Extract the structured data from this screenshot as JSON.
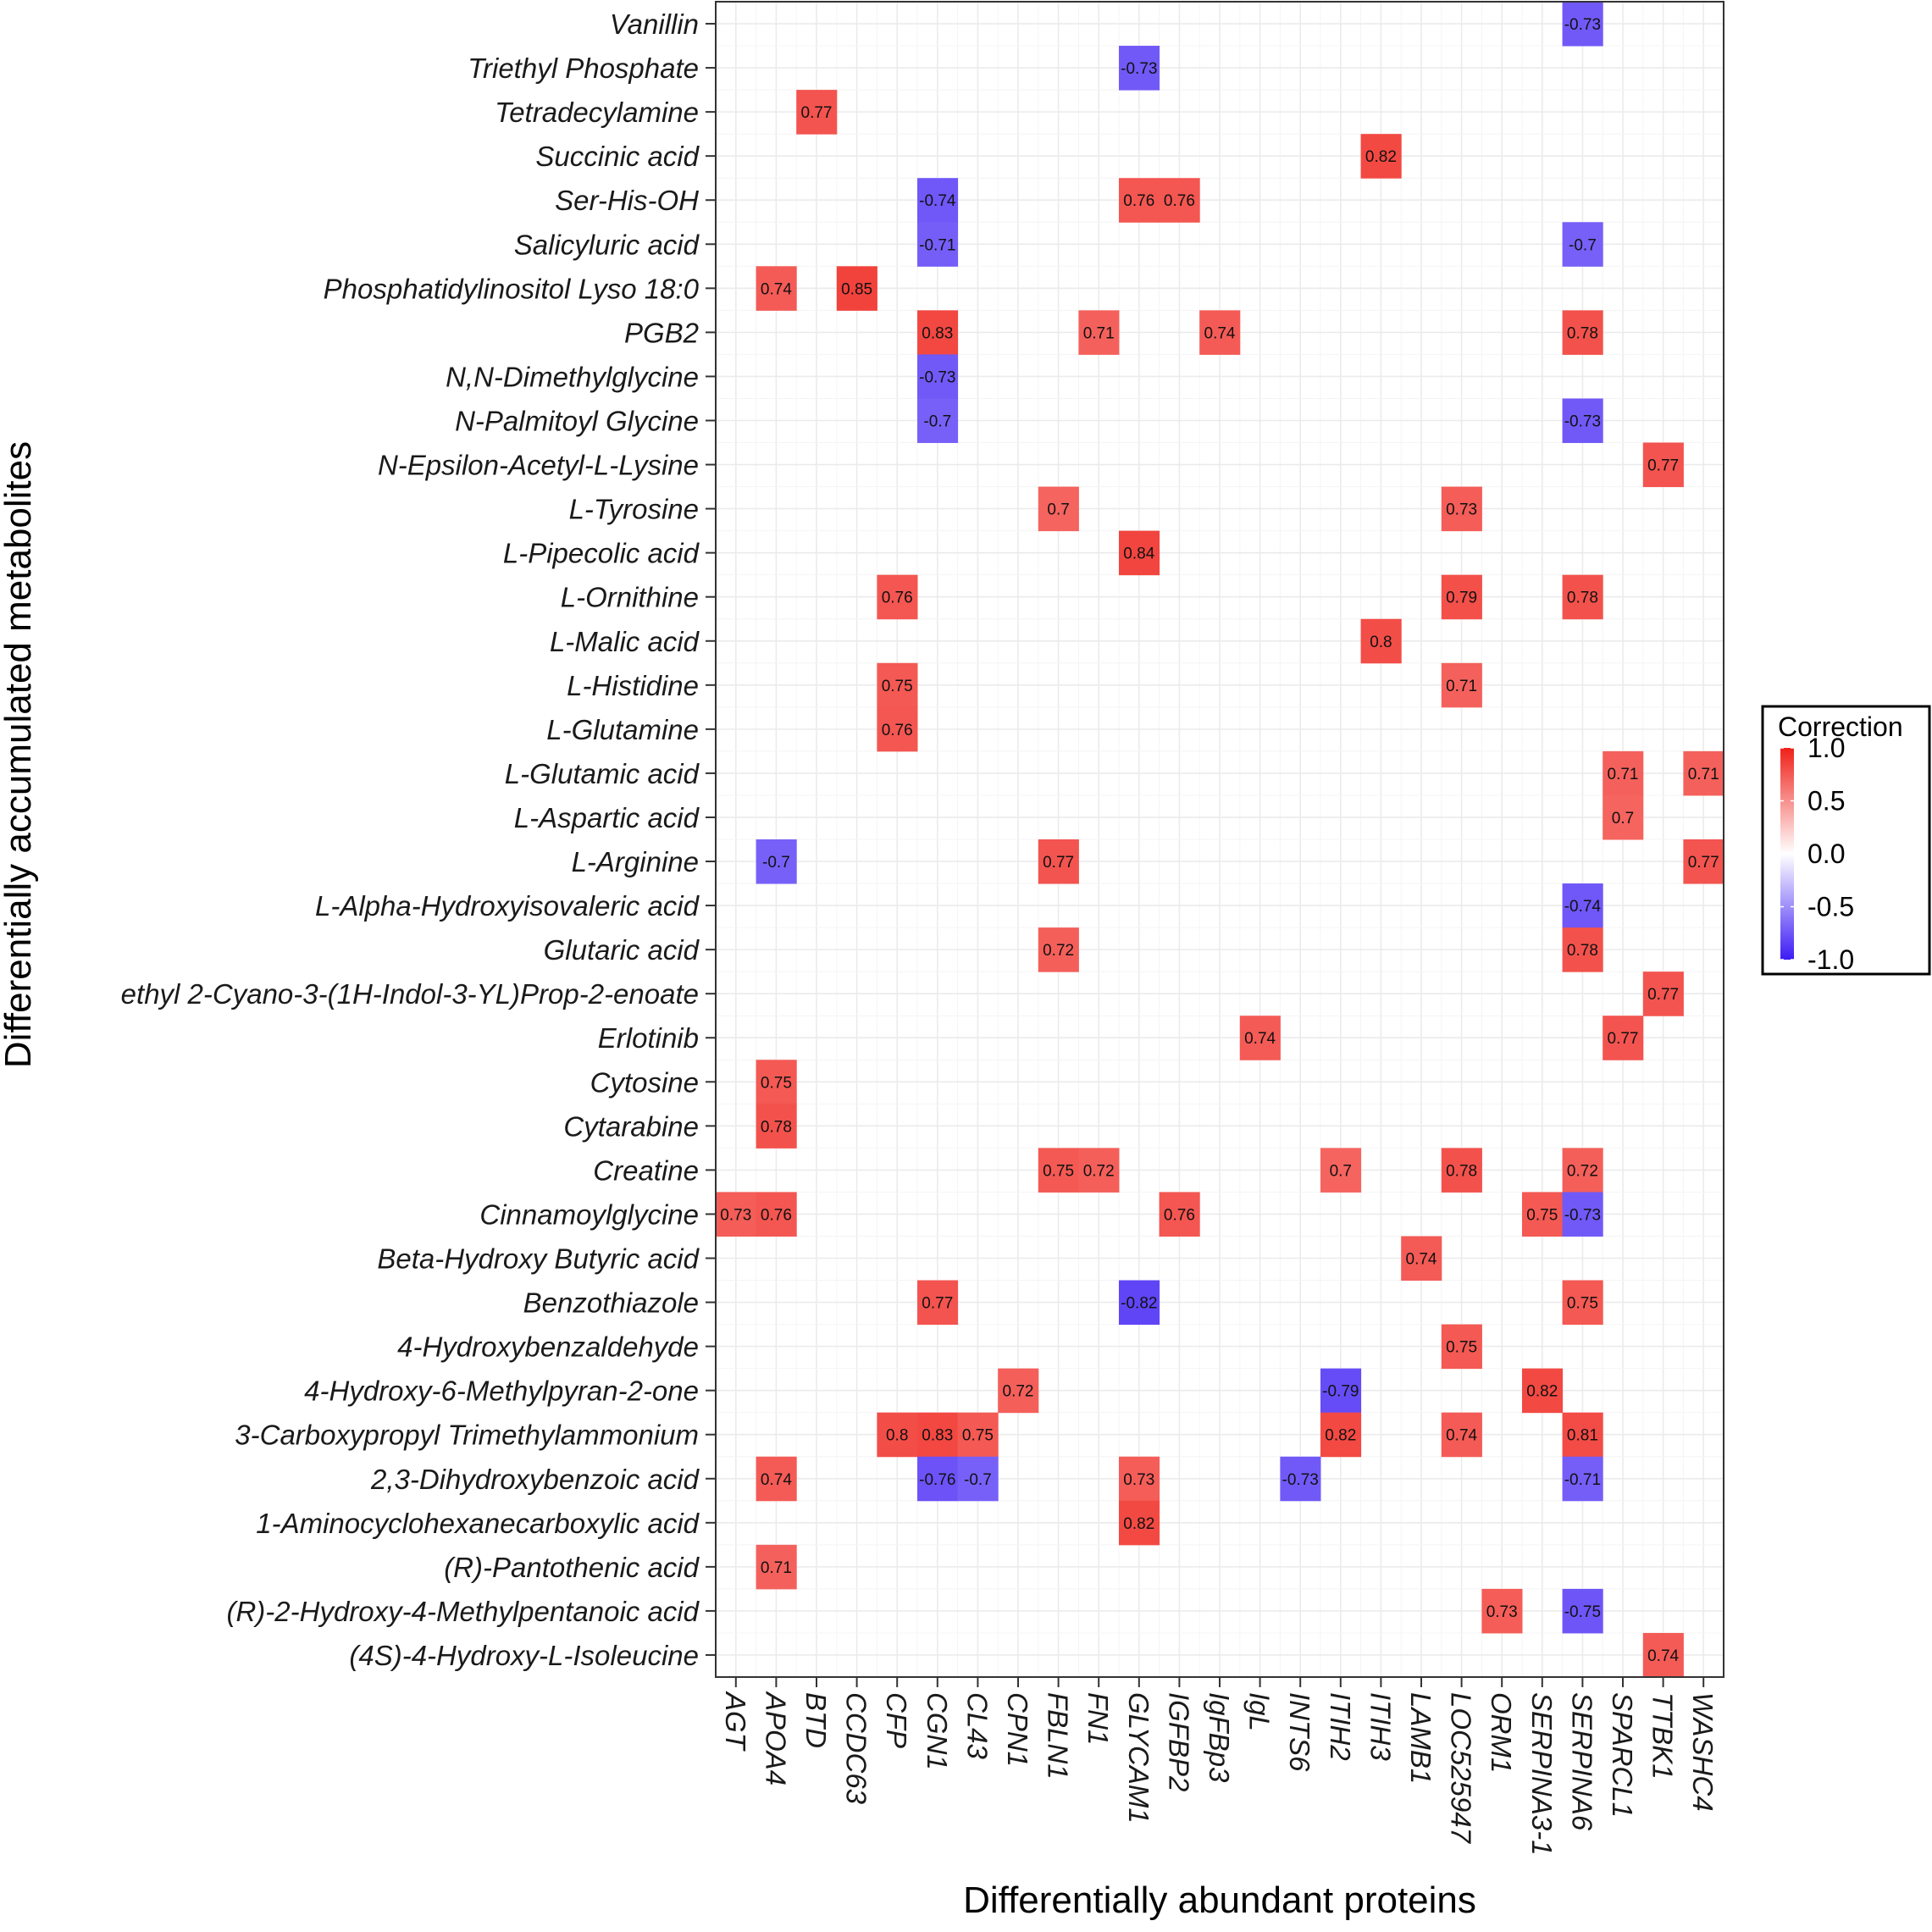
{
  "chart_data": {
    "type": "heatmap",
    "xlabel": "Differentially abundant proteins",
    "ylabel": "Differentially accumulated metabolites",
    "legend": {
      "title": "Correction",
      "range": [
        -1.0,
        1.0
      ],
      "ticks": [
        "1.0",
        "0.5",
        "0.0",
        "-0.5",
        "-1.0"
      ],
      "tick_values": [
        1.0,
        0.5,
        0.0,
        -0.5,
        -1.0
      ],
      "low_color": "#3d1cf5",
      "mid_color": "#ffffff",
      "high_color": "#f0211a",
      "placement": "right"
    },
    "x_categories": [
      "AGT",
      "APOA4",
      "BTD",
      "CCDC63",
      "CFP",
      "CGN1",
      "CL43",
      "CPN1",
      "FBLN1",
      "FN1",
      "GLYCAM1",
      "IGFBP2",
      "IgFBp3",
      "IgL",
      "INTS6",
      "ITIH2",
      "ITIH3",
      "LAMB1",
      "LOC525947",
      "ORM1",
      "SERPINA3-1",
      "SERPINA6",
      "SPARCL1",
      "TTBK1",
      "WASHC4"
    ],
    "y_categories": [
      "Vanillin",
      "Triethyl Phosphate",
      "Tetradecylamine",
      "Succinic acid",
      "Ser-His-OH",
      "Salicyluric acid",
      "Phosphatidylinositol Lyso 18:0",
      "PGB2",
      "N,N-Dimethylglycine",
      "N-Palmitoyl Glycine",
      "N-Epsilon-Acetyl-L-Lysine",
      "L-Tyrosine",
      "L-Pipecolic acid",
      "L-Ornithine",
      "L-Malic acid",
      "L-Histidine",
      "L-Glutamine",
      "L-Glutamic acid",
      "L-Aspartic acid",
      "L-Arginine",
      "L-Alpha-Hydroxyisovaleric acid",
      "Glutaric acid",
      "ethyl 2-Cyano-3-(1H-Indol-3-YL)Prop-2-enoate",
      "Erlotinib",
      "Cytosine",
      "Cytarabine",
      "Creatine",
      "Cinnamoylglycine",
      "Beta-Hydroxy Butyric acid",
      "Benzothiazole",
      "4-Hydroxybenzaldehyde",
      "4-Hydroxy-6-Methylpyran-2-one",
      "3-Carboxypropyl Trimethylammonium",
      "2,3-Dihydroxybenzoic acid",
      "1-Aminocyclohexanecarboxylic acid",
      "(R)-Pantothenic acid",
      "(R)-2-Hydroxy-4-Methylpentanoic acid",
      "(4S)-4-Hydroxy-L-Isoleucine"
    ],
    "cells": [
      {
        "y": "Vanillin",
        "x": "SERPINA6",
        "value": -0.73
      },
      {
        "y": "Triethyl Phosphate",
        "x": "GLYCAM1",
        "value": -0.73
      },
      {
        "y": "Tetradecylamine",
        "x": "BTD",
        "value": 0.77
      },
      {
        "y": "Succinic acid",
        "x": "ITIH3",
        "value": 0.82
      },
      {
        "y": "Ser-His-OH",
        "x": "CGN1",
        "value": -0.74
      },
      {
        "y": "Ser-His-OH",
        "x": "GLYCAM1",
        "value": 0.76
      },
      {
        "y": "Ser-His-OH",
        "x": "IGFBP2",
        "value": 0.76
      },
      {
        "y": "Salicyluric acid",
        "x": "CGN1",
        "value": -0.71
      },
      {
        "y": "Salicyluric acid",
        "x": "SERPINA6",
        "value": -0.7
      },
      {
        "y": "Phosphatidylinositol Lyso 18:0",
        "x": "APOA4",
        "value": 0.74
      },
      {
        "y": "Phosphatidylinositol Lyso 18:0",
        "x": "CCDC63",
        "value": 0.85
      },
      {
        "y": "PGB2",
        "x": "CGN1",
        "value": 0.83
      },
      {
        "y": "PGB2",
        "x": "FN1",
        "value": 0.71
      },
      {
        "y": "PGB2",
        "x": "IgFBp3",
        "value": 0.74
      },
      {
        "y": "PGB2",
        "x": "SERPINA6",
        "value": 0.78
      },
      {
        "y": "N,N-Dimethylglycine",
        "x": "CGN1",
        "value": -0.73
      },
      {
        "y": "N-Palmitoyl Glycine",
        "x": "CGN1",
        "value": -0.7
      },
      {
        "y": "N-Palmitoyl Glycine",
        "x": "SERPINA6",
        "value": -0.73
      },
      {
        "y": "N-Epsilon-Acetyl-L-Lysine",
        "x": "TTBK1",
        "value": 0.77
      },
      {
        "y": "L-Tyrosine",
        "x": "FBLN1",
        "value": 0.7
      },
      {
        "y": "L-Tyrosine",
        "x": "LOC525947",
        "value": 0.73
      },
      {
        "y": "L-Pipecolic acid",
        "x": "GLYCAM1",
        "value": 0.84
      },
      {
        "y": "L-Ornithine",
        "x": "CFP",
        "value": 0.76
      },
      {
        "y": "L-Ornithine",
        "x": "LOC525947",
        "value": 0.79
      },
      {
        "y": "L-Ornithine",
        "x": "SERPINA6",
        "value": 0.78
      },
      {
        "y": "L-Malic acid",
        "x": "ITIH3",
        "value": 0.8
      },
      {
        "y": "L-Histidine",
        "x": "CFP",
        "value": 0.75
      },
      {
        "y": "L-Histidine",
        "x": "LOC525947",
        "value": 0.71
      },
      {
        "y": "L-Glutamine",
        "x": "CFP",
        "value": 0.76
      },
      {
        "y": "L-Glutamic acid",
        "x": "SPARCL1",
        "value": 0.71
      },
      {
        "y": "L-Glutamic acid",
        "x": "WASHC4",
        "value": 0.71
      },
      {
        "y": "L-Aspartic acid",
        "x": "SPARCL1",
        "value": 0.7
      },
      {
        "y": "L-Arginine",
        "x": "APOA4",
        "value": -0.7
      },
      {
        "y": "L-Arginine",
        "x": "FBLN1",
        "value": 0.77
      },
      {
        "y": "L-Arginine",
        "x": "WASHC4",
        "value": 0.77
      },
      {
        "y": "L-Alpha-Hydroxyisovaleric acid",
        "x": "SERPINA6",
        "value": -0.74
      },
      {
        "y": "Glutaric acid",
        "x": "FBLN1",
        "value": 0.72
      },
      {
        "y": "Glutaric acid",
        "x": "SERPINA6",
        "value": 0.78
      },
      {
        "y": "ethyl 2-Cyano-3-(1H-Indol-3-YL)Prop-2-enoate",
        "x": "TTBK1",
        "value": 0.77
      },
      {
        "y": "Erlotinib",
        "x": "IgL",
        "value": 0.74
      },
      {
        "y": "Erlotinib",
        "x": "SPARCL1",
        "value": 0.77
      },
      {
        "y": "Cytosine",
        "x": "APOA4",
        "value": 0.75
      },
      {
        "y": "Cytarabine",
        "x": "APOA4",
        "value": 0.78
      },
      {
        "y": "Creatine",
        "x": "FBLN1",
        "value": 0.75
      },
      {
        "y": "Creatine",
        "x": "FN1",
        "value": 0.72
      },
      {
        "y": "Creatine",
        "x": "ITIH2",
        "value": 0.7
      },
      {
        "y": "Creatine",
        "x": "LOC525947",
        "value": 0.78
      },
      {
        "y": "Creatine",
        "x": "SERPINA6",
        "value": 0.72
      },
      {
        "y": "Cinnamoylglycine",
        "x": "AGT",
        "value": 0.73
      },
      {
        "y": "Cinnamoylglycine",
        "x": "APOA4",
        "value": 0.76
      },
      {
        "y": "Cinnamoylglycine",
        "x": "IGFBP2",
        "value": 0.76
      },
      {
        "y": "Cinnamoylglycine",
        "x": "SERPINA3-1",
        "value": 0.75
      },
      {
        "y": "Cinnamoylglycine",
        "x": "SERPINA6",
        "value": -0.73
      },
      {
        "y": "Beta-Hydroxy Butyric acid",
        "x": "LAMB1",
        "value": 0.74
      },
      {
        "y": "Benzothiazole",
        "x": "CGN1",
        "value": 0.77
      },
      {
        "y": "Benzothiazole",
        "x": "GLYCAM1",
        "value": -0.82
      },
      {
        "y": "Benzothiazole",
        "x": "SERPINA6",
        "value": 0.75
      },
      {
        "y": "4-Hydroxybenzaldehyde",
        "x": "LOC525947",
        "value": 0.75
      },
      {
        "y": "4-Hydroxy-6-Methylpyran-2-one",
        "x": "CPN1",
        "value": 0.72
      },
      {
        "y": "4-Hydroxy-6-Methylpyran-2-one",
        "x": "ITIH2",
        "value": -0.79
      },
      {
        "y": "4-Hydroxy-6-Methylpyran-2-one",
        "x": "SERPINA3-1",
        "value": 0.82
      },
      {
        "y": "3-Carboxypropyl Trimethylammonium",
        "x": "CFP",
        "value": 0.8
      },
      {
        "y": "3-Carboxypropyl Trimethylammonium",
        "x": "CGN1",
        "value": 0.83
      },
      {
        "y": "3-Carboxypropyl Trimethylammonium",
        "x": "CL43",
        "value": 0.75
      },
      {
        "y": "3-Carboxypropyl Trimethylammonium",
        "x": "ITIH2",
        "value": 0.82
      },
      {
        "y": "3-Carboxypropyl Trimethylammonium",
        "x": "LOC525947",
        "value": 0.74
      },
      {
        "y": "3-Carboxypropyl Trimethylammonium",
        "x": "SERPINA6",
        "value": 0.81
      },
      {
        "y": "2,3-Dihydroxybenzoic acid",
        "x": "APOA4",
        "value": 0.74
      },
      {
        "y": "2,3-Dihydroxybenzoic acid",
        "x": "CGN1",
        "value": -0.76
      },
      {
        "y": "2,3-Dihydroxybenzoic acid",
        "x": "CL43",
        "value": -0.7
      },
      {
        "y": "2,3-Dihydroxybenzoic acid",
        "x": "GLYCAM1",
        "value": 0.73
      },
      {
        "y": "2,3-Dihydroxybenzoic acid",
        "x": "INTS6",
        "value": -0.73
      },
      {
        "y": "2,3-Dihydroxybenzoic acid",
        "x": "SERPINA6",
        "value": -0.71
      },
      {
        "y": "1-Aminocyclohexanecarboxylic acid",
        "x": "GLYCAM1",
        "value": 0.82
      },
      {
        "y": "(R)-Pantothenic acid",
        "x": "APOA4",
        "value": 0.71
      },
      {
        "y": "(R)-2-Hydroxy-4-Methylpentanoic acid",
        "x": "ORM1",
        "value": 0.73
      },
      {
        "y": "(R)-2-Hydroxy-4-Methylpentanoic acid",
        "x": "SERPINA6",
        "value": -0.75
      },
      {
        "y": "(4S)-4-Hydroxy-L-Isoleucine",
        "x": "TTBK1",
        "value": 0.74
      }
    ]
  }
}
